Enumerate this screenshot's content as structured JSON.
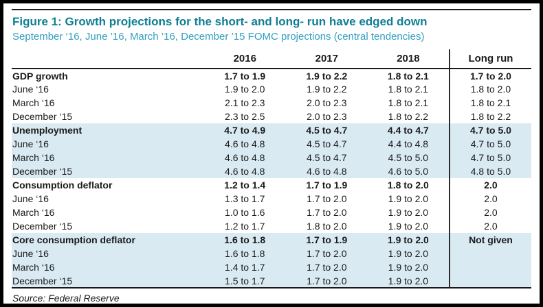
{
  "figure": {
    "title": "Figure 1: Growth projections for the short- and long- run have edged down",
    "subtitle": "September ‘16, June ’16, March ’16, December ’15 FOMC projections (central tendencies)",
    "source": "Source: Federal Reserve"
  },
  "colors": {
    "title_teal": "#0d7e93",
    "subtitle_teal": "#2f9fc1",
    "highlight_blue": "#d9eaf3",
    "rule_black": "#1a1a1a"
  },
  "chart_data": {
    "type": "table",
    "title": "Growth projections for the short- and long- run have edged down",
    "subtitle": "September '16, June '16, March '16, December '15 FOMC projections (central tendencies)",
    "columns": [
      "",
      "2016",
      "2017",
      "2018",
      "Long run"
    ],
    "sections": [
      {
        "name": "GDP growth",
        "highlighted": false,
        "rows": [
          {
            "label": "GDP growth",
            "values": [
              "1.7 to 1.9",
              "1.9 to 2.2",
              "1.8 to 2.1",
              "1.7 to 2.0"
            ]
          },
          {
            "label": "June ‘16",
            "values": [
              "1.9 to 2.0",
              "1.9 to 2.2",
              "1.8 to 2.1",
              "1.8 to 2.0"
            ]
          },
          {
            "label": "March ‘16",
            "values": [
              "2.1 to 2.3",
              "2.0 to 2.3",
              "1.8 to 2.1",
              "1.8 to 2.1"
            ]
          },
          {
            "label": "December ‘15",
            "values": [
              "2.3 to 2.5",
              "2.0 to 2.3",
              "1.8 to 2.2",
              "1.8 to 2.2"
            ]
          }
        ]
      },
      {
        "name": "Unemployment",
        "highlighted": true,
        "rows": [
          {
            "label": "Unemployment",
            "values": [
              "4.7 to 4.9",
              "4.5 to 4.7",
              "4.4 to 4.7",
              "4.7 to 5.0"
            ]
          },
          {
            "label": "June ‘16",
            "values": [
              "4.6 to 4.8",
              "4.5 to 4.7",
              "4.4 to 4.8",
              "4.7 to 5.0"
            ]
          },
          {
            "label": "March ‘16",
            "values": [
              "4.6 to 4.8",
              "4.5 to 4.7",
              "4.5 to 5.0",
              "4.7 to 5.0"
            ]
          },
          {
            "label": "December ‘15",
            "values": [
              "4.6 to 4.8",
              "4.6 to 4.8",
              "4.6 to 5.0",
              "4.8 to 5.0"
            ]
          }
        ]
      },
      {
        "name": "Consumption deflator",
        "highlighted": false,
        "rows": [
          {
            "label": "Consumption deflator",
            "values": [
              "1.2 to 1.4",
              "1.7 to 1.9",
              "1.8 to 2.0",
              "2.0"
            ]
          },
          {
            "label": "June ‘16",
            "values": [
              "1.3 to 1.7",
              "1.7 to 2.0",
              "1.9 to 2.0",
              "2.0"
            ]
          },
          {
            "label": "March ‘16",
            "values": [
              "1.0 to 1.6",
              "1.7 to 2.0",
              "1.9 to 2.0",
              "2.0"
            ]
          },
          {
            "label": "December ‘15",
            "values": [
              "1.2 to 1.7",
              "1.8 to 2.0",
              "1.9 to 2.0",
              "2.0"
            ]
          }
        ]
      },
      {
        "name": "Core consumption deflator",
        "highlighted": true,
        "rows": [
          {
            "label": "Core consumption deflator",
            "values": [
              "1.6 to 1.8",
              "1.7 to 1.9",
              "1.9 to 2.0",
              "Not given"
            ]
          },
          {
            "label": "June ‘16",
            "values": [
              "1.6 to 1.8",
              "1.7 to 2.0",
              "1.9 to 2.0",
              ""
            ]
          },
          {
            "label": "March ‘16",
            "values": [
              "1.4 to 1.7",
              "1.7 to 2.0",
              "1.9 to 2.0",
              ""
            ]
          },
          {
            "label": "December ‘15",
            "values": [
              "1.5 to 1.7",
              "1.7 to 2.0",
              "1.9 to 2.0",
              ""
            ]
          }
        ]
      }
    ]
  }
}
